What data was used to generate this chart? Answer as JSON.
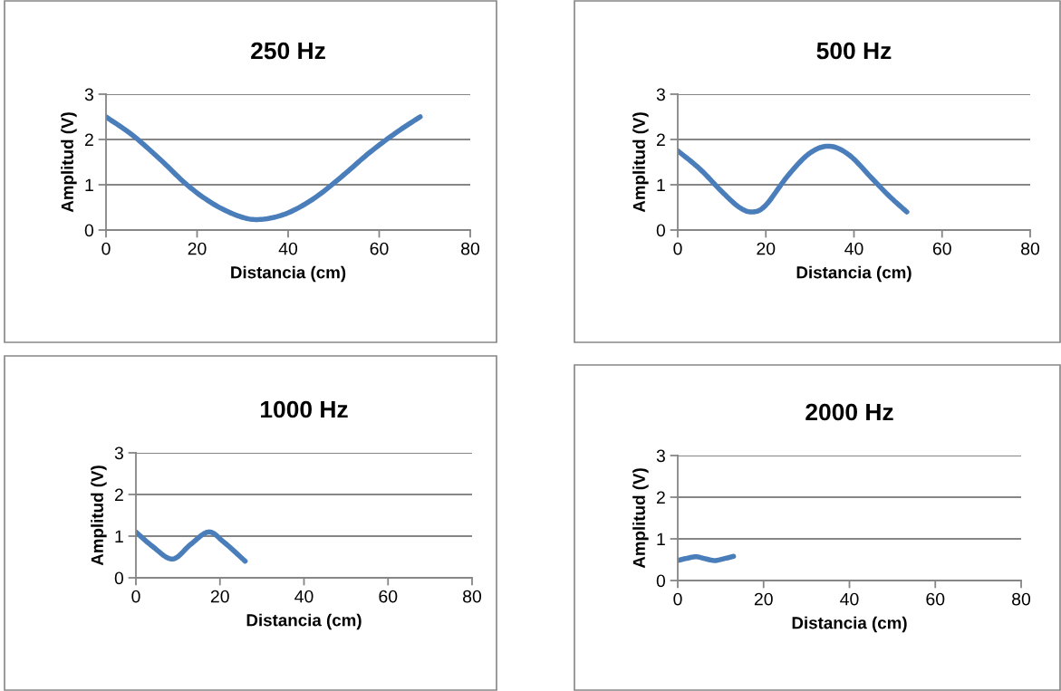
{
  "chart_data": [
    {
      "type": "line",
      "title": "250 Hz",
      "xlabel": "Distancia (cm)",
      "ylabel": "Amplitud (V)",
      "xlim": [
        0,
        80
      ],
      "xticks": [
        0,
        20,
        40,
        60,
        80
      ],
      "ylim": [
        0,
        3
      ],
      "yticks": [
        0,
        1,
        2,
        3
      ],
      "grid": "y",
      "legend": false,
      "marker": "none",
      "line_style": "solid",
      "series": [
        {
          "color": "#4a7ebb",
          "x": [
            0,
            6,
            12,
            18,
            24,
            30,
            34.5,
            40,
            46,
            52,
            58,
            64,
            69
          ],
          "values": [
            2.5,
            2.08,
            1.55,
            0.98,
            0.55,
            0.28,
            0.24,
            0.38,
            0.72,
            1.2,
            1.72,
            2.17,
            2.5
          ]
        }
      ]
    },
    {
      "type": "line",
      "title": "500 Hz",
      "xlabel": "Distancia (cm)",
      "ylabel": "Amplitud (V)",
      "xlim": [
        0,
        80
      ],
      "xticks": [
        0,
        20,
        40,
        60,
        80
      ],
      "ylim": [
        0,
        3
      ],
      "yticks": [
        0,
        1,
        2,
        3
      ],
      "grid": "y",
      "legend": false,
      "marker": "none",
      "line_style": "solid",
      "series": [
        {
          "color": "#4a7ebb",
          "x": [
            0,
            5,
            10,
            14,
            17,
            20,
            25,
            30,
            34.5,
            39,
            44,
            48,
            52
          ],
          "values": [
            1.75,
            1.35,
            0.85,
            0.5,
            0.4,
            0.55,
            1.2,
            1.7,
            1.85,
            1.65,
            1.15,
            0.75,
            0.4
          ]
        }
      ]
    },
    {
      "type": "line",
      "title": "1000 Hz",
      "xlabel": "Distancia (cm)",
      "ylabel": "Amplitud (V)",
      "xlim": [
        0,
        80
      ],
      "xticks": [
        0,
        20,
        40,
        60,
        80
      ],
      "ylim": [
        0,
        3
      ],
      "yticks": [
        0,
        1,
        2,
        3
      ],
      "grid": "y",
      "legend": false,
      "marker": "none",
      "line_style": "solid",
      "series": [
        {
          "color": "#4a7ebb",
          "x": [
            0,
            4,
            8.7,
            13,
            17.3,
            21,
            26
          ],
          "values": [
            1.1,
            0.75,
            0.45,
            0.8,
            1.1,
            0.85,
            0.4
          ]
        }
      ]
    },
    {
      "type": "line",
      "title": "2000 Hz",
      "xlabel": "Distancia (cm)",
      "ylabel": "Amplitud (V)",
      "xlim": [
        0,
        80
      ],
      "xticks": [
        0,
        20,
        40,
        60,
        80
      ],
      "ylim": [
        0,
        3
      ],
      "yticks": [
        0,
        1,
        2,
        3
      ],
      "grid": "y",
      "legend": false,
      "marker": "none",
      "line_style": "solid",
      "series": [
        {
          "color": "#4a7ebb",
          "x": [
            0,
            2,
            4.3,
            6.5,
            8.7,
            11,
            13
          ],
          "values": [
            0.48,
            0.53,
            0.57,
            0.52,
            0.48,
            0.53,
            0.58
          ]
        }
      ]
    }
  ]
}
